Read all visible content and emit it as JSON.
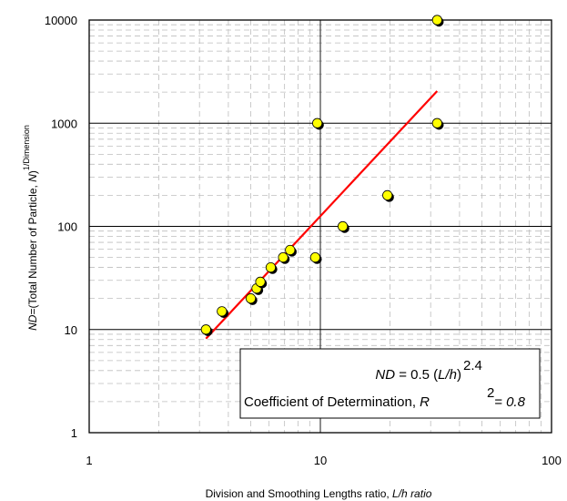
{
  "chart_data": {
    "type": "scatter",
    "x_scale": "log",
    "y_scale": "log",
    "xlim": [
      1,
      100
    ],
    "ylim": [
      1,
      10000
    ],
    "x_ticks": [
      "1",
      "10",
      "100"
    ],
    "y_ticks": [
      "1",
      "10",
      "100",
      "1000",
      "10000"
    ],
    "grid": true,
    "xlabel": {
      "prefix": "Division and Smoothing Lengths ratio, ",
      "italic": "L/h ratio"
    },
    "ylabel": {
      "italic_1": "ND",
      "text_1": "=(Total Number of Particle, ",
      "italic_2": "N",
      "text_2": ")",
      "superscript": "1/Dimension"
    },
    "points": [
      {
        "x": 3.2,
        "y": 10
      },
      {
        "x": 3.75,
        "y": 15
      },
      {
        "x": 5.0,
        "y": 20
      },
      {
        "x": 5.3,
        "y": 25
      },
      {
        "x": 5.5,
        "y": 29
      },
      {
        "x": 6.1,
        "y": 40
      },
      {
        "x": 6.9,
        "y": 50
      },
      {
        "x": 7.4,
        "y": 59
      },
      {
        "x": 9.5,
        "y": 50
      },
      {
        "x": 9.7,
        "y": 1000
      },
      {
        "x": 12.5,
        "y": 100
      },
      {
        "x": 19.5,
        "y": 200
      },
      {
        "x": 32,
        "y": 1000
      },
      {
        "x": 32,
        "y": 10000
      }
    ],
    "fit": {
      "a": 0.5,
      "b": 2.4,
      "x_range": [
        3.2,
        32
      ],
      "color": "#ff0000"
    },
    "marker_fill": "#ffff00",
    "marker_stroke": "#000000",
    "annotation": {
      "line1_italic": "ND",
      "line1_text": " = 0.5 (",
      "line1_italic2": "L/h",
      "line1_close": ")",
      "line1_sup": "2.4",
      "line2_text": "Coefficient of Determination, ",
      "line2_italic": "R",
      "line2_sup": "2",
      "line2_eq": " = 0.8"
    }
  }
}
